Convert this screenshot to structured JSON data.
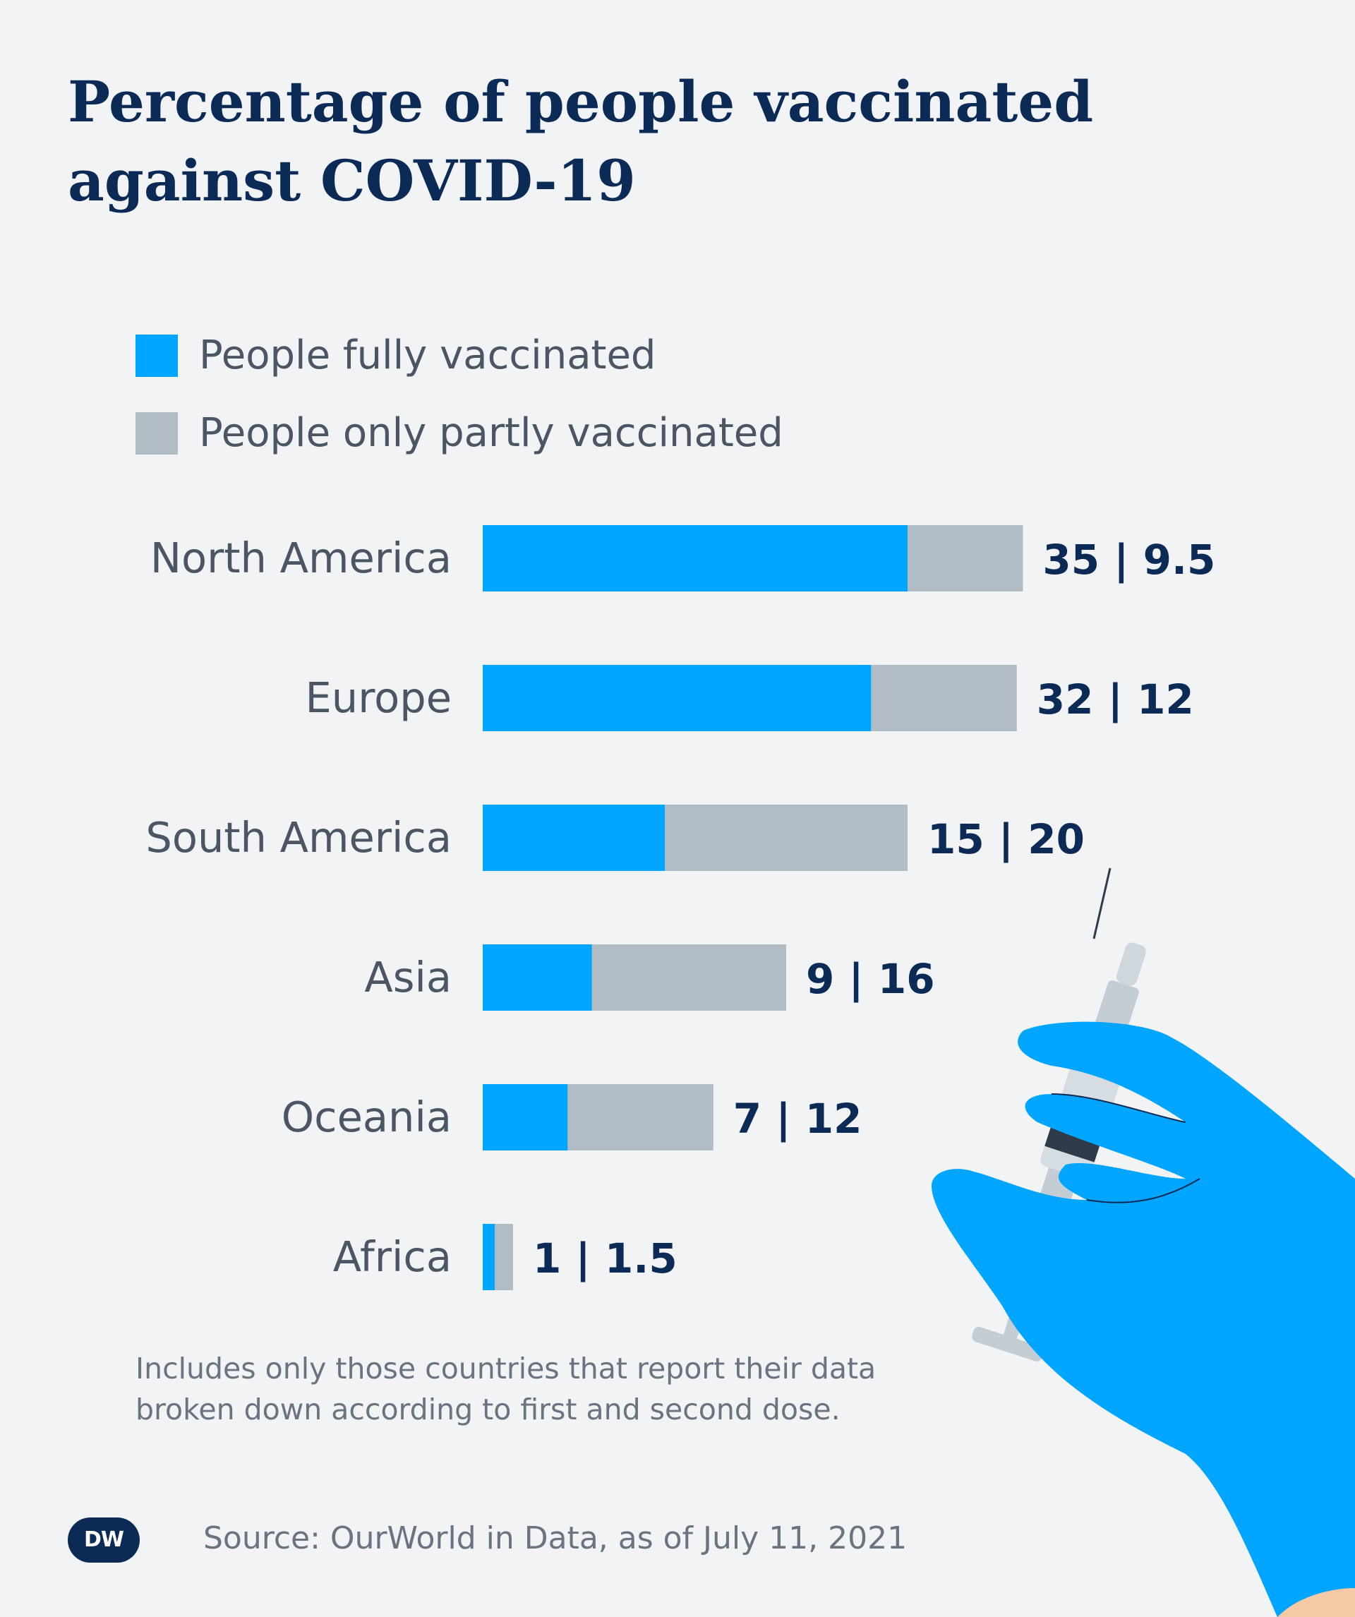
{
  "title_line1": "Percentage of people vaccinated",
  "title_line2": "against COVID-19",
  "legend": {
    "full": "People fully vaccinated",
    "partial": "People only partly vaccinated"
  },
  "colors": {
    "full": "#00a5ff",
    "partial": "#b2bcc4",
    "title": "#0b2a55",
    "background": "#f1f3f5"
  },
  "chart_data": {
    "type": "bar",
    "orientation": "horizontal",
    "stacked": true,
    "categories": [
      "North America",
      "Europe",
      "South America",
      "Asia",
      "Oceania",
      "Africa"
    ],
    "series": [
      {
        "name": "People fully vaccinated",
        "values": [
          35,
          32,
          15,
          9,
          7,
          1
        ]
      },
      {
        "name": "People only partly vaccinated",
        "values": [
          9.5,
          12,
          20,
          16,
          12,
          1.5
        ]
      }
    ],
    "data_labels": [
      "35 | 9.5",
      "32 | 12",
      "15 | 20",
      "9 | 16",
      "7 | 12",
      "1 | 1.5"
    ],
    "legend_position": "top-left",
    "grid": false,
    "axes_visible": false
  },
  "footnote_line1": "Includes only those countries that report their data",
  "footnote_line2": "broken down according to first and second dose.",
  "source": "Source: OurWorld in Data, as of July 11, 2021",
  "logo": {
    "text": "DW",
    "icon": "dw-logo-icon"
  },
  "illustration": {
    "icon": "gloved-hand-syringe-icon"
  }
}
